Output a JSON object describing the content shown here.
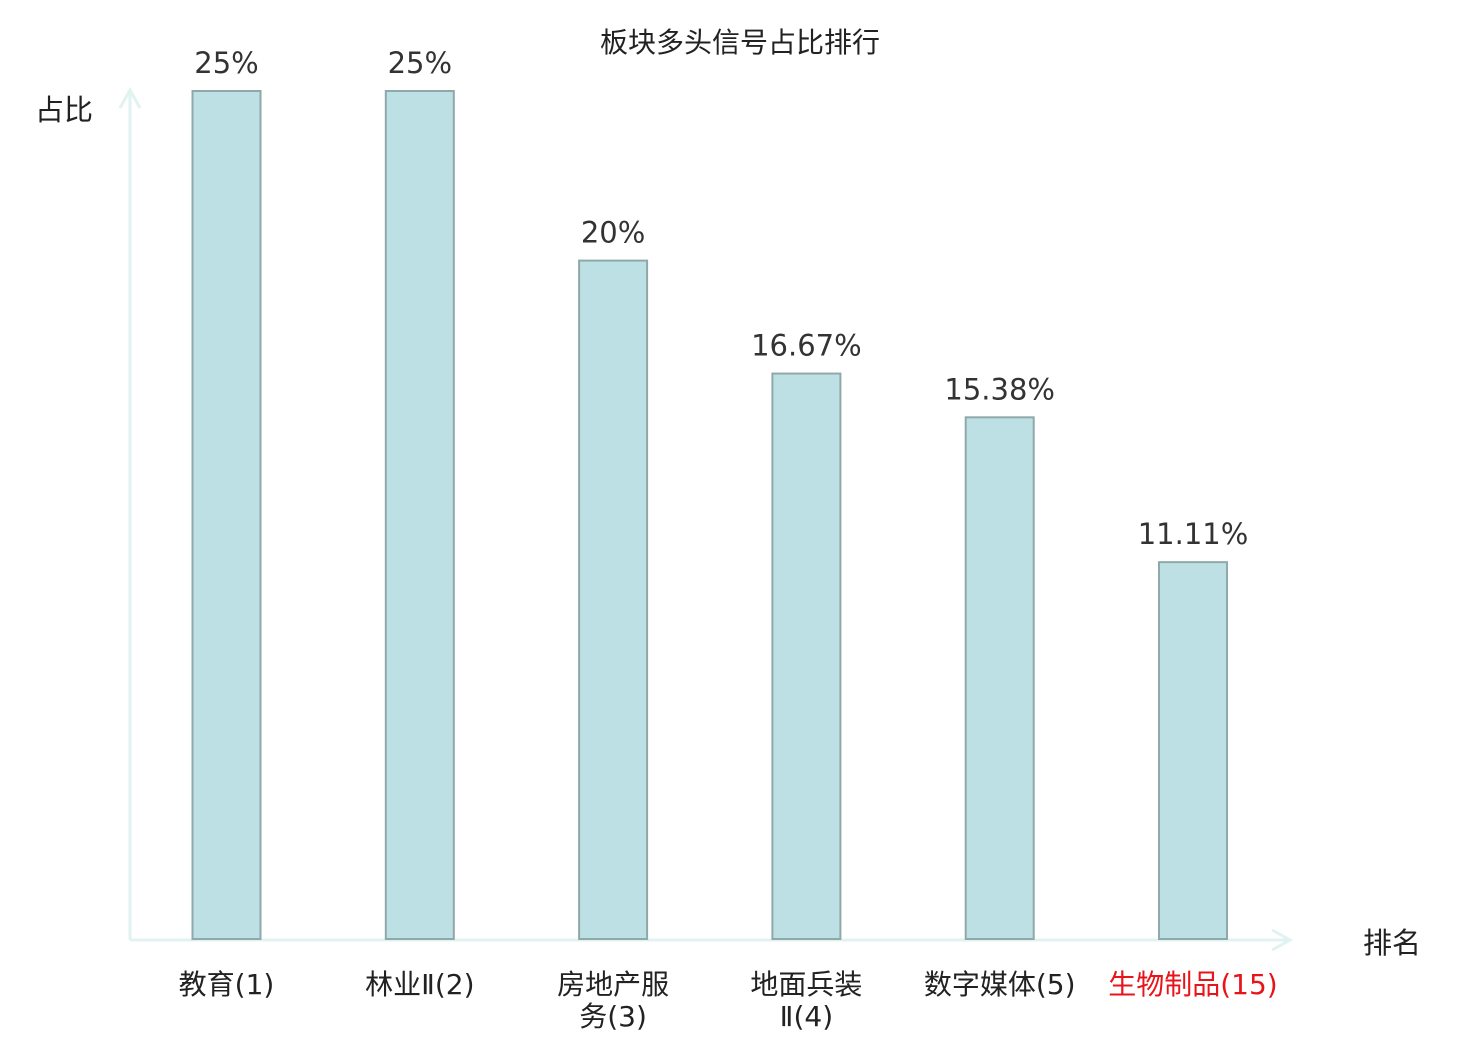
{
  "chart_data": {
    "type": "bar",
    "title": "板块多头信号占比排行",
    "ylabel": "占比",
    "xlabel": "排名",
    "ylim": [
      0,
      25
    ],
    "grid": false,
    "legend": "none",
    "categories": [
      [
        "教育(1)"
      ],
      [
        "林业Ⅱ(2)"
      ],
      [
        "房地产服",
        "务(3)"
      ],
      [
        "地面兵装",
        "Ⅱ(4)"
      ],
      [
        "数字媒体(5)"
      ],
      [
        "生物制品(15)"
      ]
    ],
    "values": [
      25,
      25,
      20,
      16.67,
      15.38,
      11.11
    ],
    "value_labels": [
      "25%",
      "25%",
      "20%",
      "16.67%",
      "15.38%",
      "11.11%"
    ],
    "highlight_index": 5,
    "colors": {
      "bar_fill": "#bce0e3",
      "bar_stroke": "#8fa9ab",
      "axis": "#e0f3f1",
      "text": "#222222",
      "value_label": "#333333",
      "highlight_text": "#e8141a"
    }
  }
}
